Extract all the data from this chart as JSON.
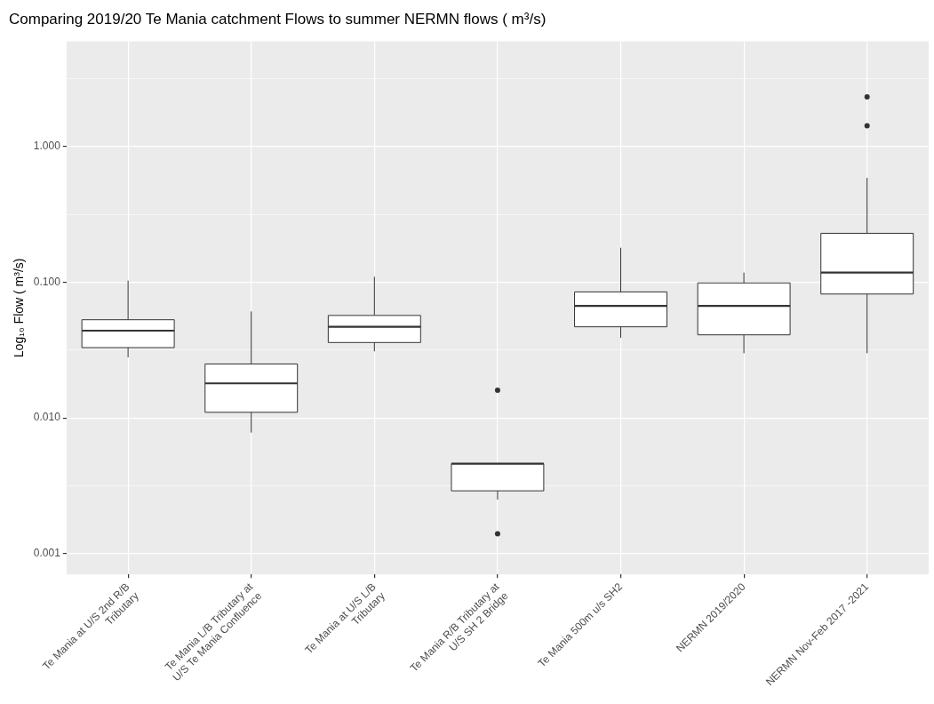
{
  "chart_data": {
    "type": "box",
    "title": "Comparing 2019/20 Te Mania catchment Flows to summer NERMN flows ( m³/s)",
    "ylabel": "Log₁₀ Flow ( m³/s)",
    "categories": [
      "Te Mania at U/S 2nd R/B Tributary",
      "Te Mania L/B Tributary at U/S Te Mania Confluence",
      "Te Mania at U/S L/B Tributary",
      "Te Mania R/B Tributary at U/S SH 2 Bridge",
      "Te Mania 500m u/s SH2",
      "NERMN 2019/2020",
      "NERMN Nov-Feb 2017 -2021"
    ],
    "boxes": [
      {
        "low": 0.028,
        "q1": 0.033,
        "median": 0.044,
        "q3": 0.053,
        "high": 0.103
      },
      {
        "low": 0.0078,
        "q1": 0.011,
        "median": 0.018,
        "q3": 0.025,
        "high": 0.061
      },
      {
        "low": 0.031,
        "q1": 0.036,
        "median": 0.047,
        "q3": 0.057,
        "high": 0.11
      },
      {
        "low": 0.0025,
        "q1": 0.0029,
        "median": 0.0046,
        "q3": 0.0046,
        "high": 0.0046,
        "outliers": [
          0.016,
          0.0014
        ]
      },
      {
        "low": 0.039,
        "q1": 0.047,
        "median": 0.067,
        "q3": 0.085,
        "high": 0.18
      },
      {
        "low": 0.03,
        "q1": 0.041,
        "median": 0.067,
        "q3": 0.099,
        "high": 0.118
      },
      {
        "low": 0.03,
        "q1": 0.082,
        "median": 0.118,
        "q3": 0.23,
        "high": 0.59,
        "outliers": [
          2.33,
          1.43
        ]
      }
    ],
    "log": "y",
    "ylim": [
      0.0007,
      6.0
    ],
    "yticks": [
      {
        "value": 0.001,
        "label": "0.001"
      },
      {
        "value": 0.00316,
        "label": null
      },
      {
        "value": 0.01,
        "label": "0.010"
      },
      {
        "value": 0.0316,
        "label": null
      },
      {
        "value": 0.1,
        "label": "0.100"
      },
      {
        "value": 0.316,
        "label": null
      },
      {
        "value": 1,
        "label": "1.000"
      },
      {
        "value": 3.16,
        "label": null
      }
    ],
    "grid": true,
    "legend": false
  }
}
